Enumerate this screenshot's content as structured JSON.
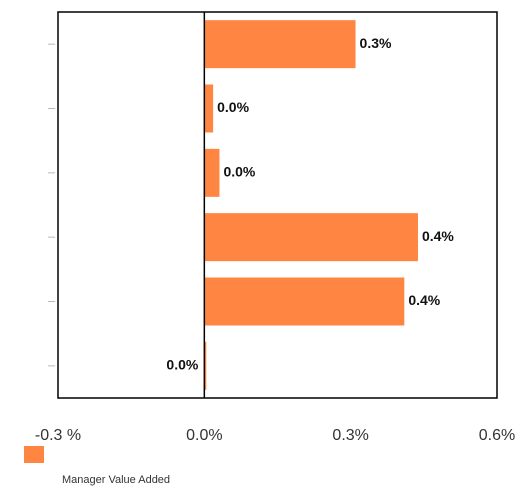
{
  "chart_data": {
    "type": "bar",
    "orientation": "horizontal",
    "categories": [
      null,
      null,
      null,
      null,
      null,
      null
    ],
    "series": [
      {
        "name": "Manager Value Added",
        "color": "#fe8642",
        "values": [
          0.31,
          0.018,
          0.031,
          0.438,
          0.41,
          0.004
        ],
        "value_labels": [
          "0.3%",
          "0.0%",
          "0.0%",
          "0.4%",
          "0.4%",
          "0.0%"
        ]
      }
    ],
    "xlim": [
      -0.3,
      0.6
    ],
    "xticks": [
      {
        "value": -0.3,
        "label": "-0.3 %"
      },
      {
        "value": 0,
        "label": "0.0%"
      },
      {
        "value": 0.3,
        "label": "0.3%"
      },
      {
        "value": 0.6,
        "label": "0.6%"
      }
    ],
    "grid": false,
    "legend": "bottom-left"
  }
}
